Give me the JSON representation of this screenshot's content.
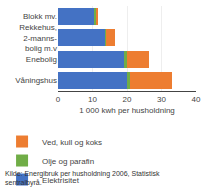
{
  "chart_data": {
    "type": "bar",
    "orientation": "horizontal",
    "stacked": true,
    "categories": [
      "Blokk mv.",
      "Rekkehus,\n2-manns-\nbolig m.v",
      "Enebolig",
      "Våningshus"
    ],
    "series": [
      {
        "name": "Elektrisitet",
        "color": "#4472C4",
        "values": [
          10.5,
          13.5,
          19.0,
          20.0
        ]
      },
      {
        "name": "Olje og parafin",
        "color": "#70AD47",
        "values": [
          0.5,
          0.5,
          1.0,
          1.0
        ]
      },
      {
        "name": "Ved, kull og koks",
        "color": "#ED7D31",
        "values": [
          0.5,
          2.5,
          6.5,
          12.0
        ]
      }
    ],
    "xlabel": "1 000 kwh per husholdning",
    "xlim": [
      0,
      40
    ],
    "xticks": [
      0,
      10,
      20,
      30,
      40
    ],
    "grid": true,
    "legend": "bottom",
    "annotations": [
      "Kilde: Energibruk per husholdning 2006, Statistisk\nsentralbyrå."
    ]
  }
}
